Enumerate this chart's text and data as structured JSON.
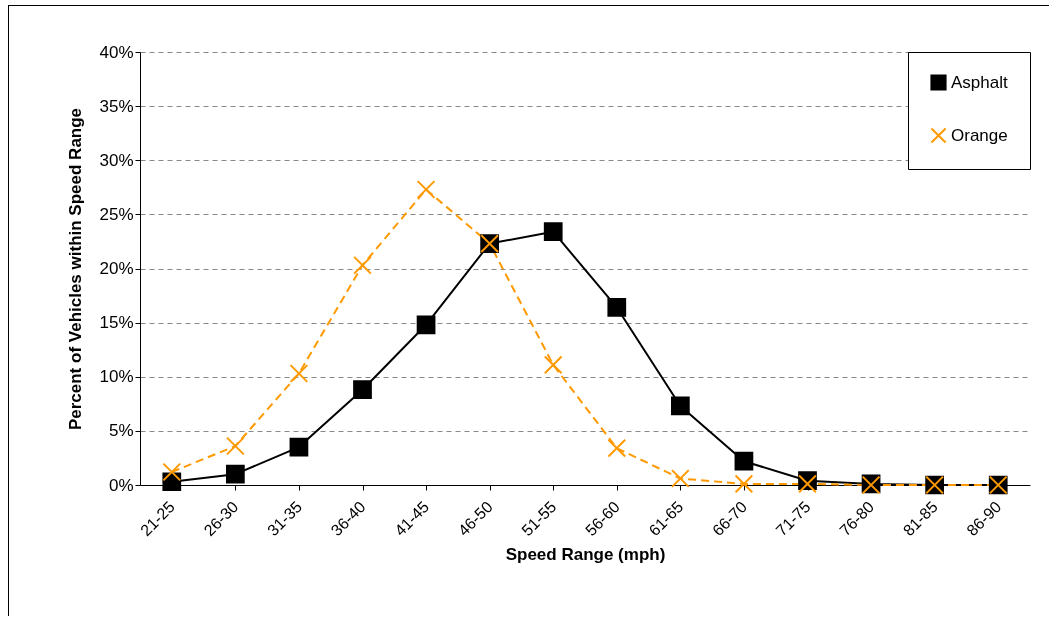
{
  "chart_data": {
    "type": "line",
    "xlabel": "Speed Range (mph)",
    "ylabel": "Percent of Vehicles within Speed Range",
    "categories": [
      "21-25",
      "26-30",
      "31-35",
      "36-40",
      "41-45",
      "46-50",
      "51-55",
      "56-60",
      "61-65",
      "66-70",
      "71-75",
      "76-80",
      "81-85",
      "86-90"
    ],
    "series": [
      {
        "name": "Asphalt",
        "color": "#000000",
        "marker": "square",
        "line_style": "solid",
        "values": [
          0.3,
          1.0,
          3.5,
          8.8,
          14.8,
          22.3,
          23.4,
          16.4,
          7.3,
          2.2,
          0.4,
          0.1,
          0.0,
          0.0
        ]
      },
      {
        "name": "Orange",
        "color": "#ff9900",
        "marker": "cross",
        "line_style": "dashed",
        "values": [
          1.2,
          3.6,
          10.3,
          20.3,
          27.3,
          22.3,
          11.1,
          3.4,
          0.6,
          0.1,
          0.1,
          0.0,
          0.0,
          0.0
        ]
      }
    ],
    "ylim": [
      0,
      40
    ],
    "yticks": [
      {
        "value": 0,
        "label": "0%"
      },
      {
        "value": 5,
        "label": "5%"
      },
      {
        "value": 10,
        "label": "10%"
      },
      {
        "value": 15,
        "label": "15%"
      },
      {
        "value": 20,
        "label": "20%"
      },
      {
        "value": 25,
        "label": "25%"
      },
      {
        "value": 30,
        "label": "30%"
      },
      {
        "value": 35,
        "label": "35%"
      },
      {
        "value": 40,
        "label": "40%"
      }
    ],
    "grid": "y",
    "legend": "top right"
  }
}
